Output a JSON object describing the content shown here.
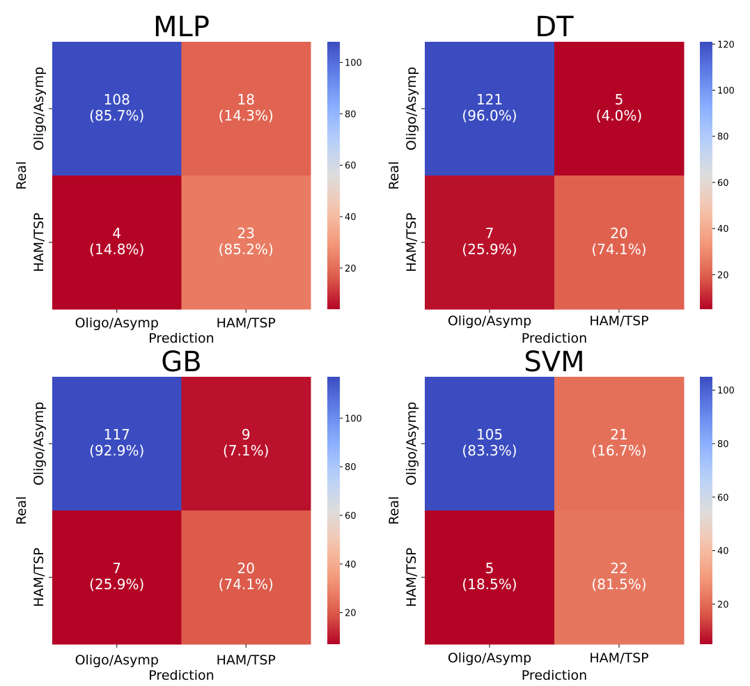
{
  "chart_data": [
    {
      "type": "heatmap",
      "title": "MLP",
      "xlabel": "Prediction",
      "ylabel": "Real",
      "x_categories": [
        "Oligo/Asymp",
        "HAM/TSP"
      ],
      "y_categories": [
        "Oligo/Asymp",
        "HAM/TSP"
      ],
      "values": [
        [
          108,
          18
        ],
        [
          4,
          23
        ]
      ],
      "percent_labels": [
        [
          "(85.7%)",
          "(14.3%)"
        ],
        [
          "(14.8%)",
          "(85.2%)"
        ]
      ],
      "colormap": "coolwarm_r",
      "color_range": [
        4,
        108
      ],
      "colorbar_ticks": [
        20,
        40,
        60,
        80,
        100
      ]
    },
    {
      "type": "heatmap",
      "title": "DT",
      "xlabel": "Prediction",
      "ylabel": "Real",
      "x_categories": [
        "Oligo/Asymp",
        "HAM/TSP"
      ],
      "y_categories": [
        "Oligo/Asymp",
        "HAM/TSP"
      ],
      "values": [
        [
          121,
          5
        ],
        [
          7,
          20
        ]
      ],
      "percent_labels": [
        [
          "(96.0%)",
          "(4.0%)"
        ],
        [
          "(25.9%)",
          "(74.1%)"
        ]
      ],
      "colormap": "coolwarm_r",
      "color_range": [
        5,
        121
      ],
      "colorbar_ticks": [
        20,
        40,
        60,
        80,
        100,
        120
      ]
    },
    {
      "type": "heatmap",
      "title": "GB",
      "xlabel": "Prediction",
      "ylabel": "Real",
      "x_categories": [
        "Oligo/Asymp",
        "HAM/TSP"
      ],
      "y_categories": [
        "Oligo/Asymp",
        "HAM/TSP"
      ],
      "values": [
        [
          117,
          9
        ],
        [
          7,
          20
        ]
      ],
      "percent_labels": [
        [
          "(92.9%)",
          "(7.1%)"
        ],
        [
          "(25.9%)",
          "(74.1%)"
        ]
      ],
      "colormap": "coolwarm_r",
      "color_range": [
        7,
        117
      ],
      "colorbar_ticks": [
        20,
        40,
        60,
        80,
        100
      ]
    },
    {
      "type": "heatmap",
      "title": "SVM",
      "xlabel": "Prediction",
      "ylabel": "Real",
      "x_categories": [
        "Oligo/Asymp",
        "HAM/TSP"
      ],
      "y_categories": [
        "Oligo/Asymp",
        "HAM/TSP"
      ],
      "values": [
        [
          105,
          21
        ],
        [
          5,
          22
        ]
      ],
      "percent_labels": [
        [
          "(83.3%)",
          "(16.7%)"
        ],
        [
          "(18.5%)",
          "(81.5%)"
        ]
      ],
      "colormap": "coolwarm_r",
      "color_range": [
        5,
        105
      ],
      "colorbar_ticks": [
        20,
        40,
        60,
        80,
        100
      ]
    }
  ]
}
